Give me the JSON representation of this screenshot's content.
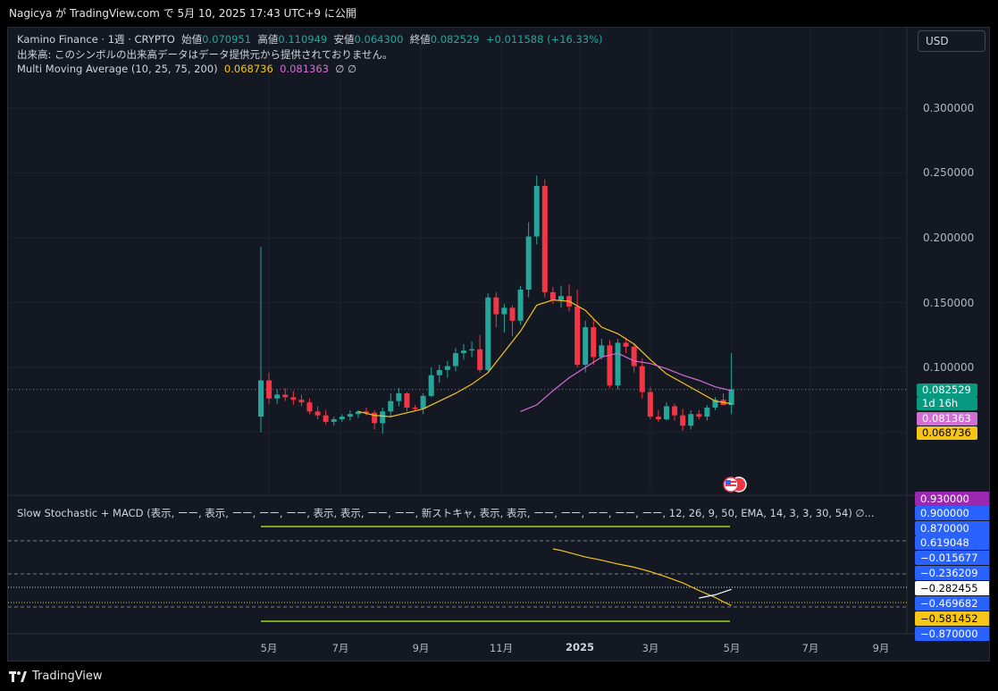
{
  "header": {
    "caption": "Nagicya が TradingView.com で 5月 10, 2025 17:43 UTC+9 に公開"
  },
  "legend": {
    "symbol": "Kamino Finance · 1週 · CRYPTO",
    "open_label": "始値",
    "open": "0.070951",
    "high_label": "高値",
    "high": "0.110949",
    "low_label": "安値",
    "low": "0.064300",
    "close_label": "終値",
    "close": "0.082529",
    "change": "+0.011588 (+16.33%)",
    "volume_note": "出来高: このシンボルの出来高データはデータ提供元から提供されておりません。",
    "ma_name": "Multi Moving Average (10, 25, 75, 200)",
    "ma_val1": "0.068736",
    "ma_val2": "0.081363",
    "ma_null": "∅ ∅"
  },
  "currency_button": "USD",
  "price_axis": [
    "0.300000",
    "0.250000",
    "0.200000",
    "0.150000",
    "0.100000"
  ],
  "price_tags": {
    "last": "0.082529",
    "countdown": "1d 16h",
    "ma_slow": "0.081363",
    "ma_fast": "0.068736"
  },
  "oscillator": {
    "legend": "Slow Stochastic + MACD (表示, ーー, 表示, ーー, ーー, ーー, 表示, 表示, ーー, ーー, 新ストキャ, 表示, 表示, ーー, ーー, ーー, ーー, ーー, 12, 26, 9, 50, EMA, 14, 3, 3, 30, 54)  ∅...",
    "tags": [
      "0.930000",
      "0.900000",
      "0.870000",
      "0.619048",
      "−0.015677",
      "−0.236209",
      "−0.282455",
      "−0.469682",
      "−0.581452",
      "−0.870000"
    ]
  },
  "time_axis": [
    "5月",
    "7月",
    "9月",
    "11月",
    "2025",
    "3月",
    "5月",
    "7月",
    "9月"
  ],
  "footer": {
    "brand": "TradingView"
  },
  "colors": {
    "up": "#26a69a",
    "down": "#f23645",
    "ma_fast": "#f5c518",
    "ma_slow": "#d36ed4",
    "background": "#141823"
  },
  "chart_data": {
    "type": "candlestick",
    "symbol": "Kamino Finance",
    "interval": "1週",
    "ylim": [
      0.04,
      0.32
    ],
    "candles": [
      {
        "o": 0.062,
        "h": 0.193,
        "l": 0.05,
        "c": 0.09
      },
      {
        "o": 0.09,
        "h": 0.096,
        "l": 0.072,
        "c": 0.076
      },
      {
        "o": 0.076,
        "h": 0.083,
        "l": 0.072,
        "c": 0.079
      },
      {
        "o": 0.079,
        "h": 0.084,
        "l": 0.074,
        "c": 0.077
      },
      {
        "o": 0.077,
        "h": 0.082,
        "l": 0.071,
        "c": 0.075
      },
      {
        "o": 0.075,
        "h": 0.079,
        "l": 0.07,
        "c": 0.073
      },
      {
        "o": 0.073,
        "h": 0.076,
        "l": 0.064,
        "c": 0.066
      },
      {
        "o": 0.066,
        "h": 0.07,
        "l": 0.06,
        "c": 0.063
      },
      {
        "o": 0.063,
        "h": 0.067,
        "l": 0.056,
        "c": 0.058
      },
      {
        "o": 0.058,
        "h": 0.062,
        "l": 0.055,
        "c": 0.06
      },
      {
        "o": 0.06,
        "h": 0.064,
        "l": 0.058,
        "c": 0.062
      },
      {
        "o": 0.062,
        "h": 0.067,
        "l": 0.059,
        "c": 0.064
      },
      {
        "o": 0.064,
        "h": 0.067,
        "l": 0.061,
        "c": 0.066
      },
      {
        "o": 0.066,
        "h": 0.069,
        "l": 0.063,
        "c": 0.065
      },
      {
        "o": 0.065,
        "h": 0.067,
        "l": 0.052,
        "c": 0.057
      },
      {
        "o": 0.057,
        "h": 0.069,
        "l": 0.049,
        "c": 0.066
      },
      {
        "o": 0.066,
        "h": 0.08,
        "l": 0.062,
        "c": 0.074
      },
      {
        "o": 0.074,
        "h": 0.084,
        "l": 0.07,
        "c": 0.08
      },
      {
        "o": 0.08,
        "h": 0.081,
        "l": 0.066,
        "c": 0.069
      },
      {
        "o": 0.069,
        "h": 0.071,
        "l": 0.066,
        "c": 0.068
      },
      {
        "o": 0.068,
        "h": 0.08,
        "l": 0.064,
        "c": 0.078
      },
      {
        "o": 0.078,
        "h": 0.1,
        "l": 0.077,
        "c": 0.094
      },
      {
        "o": 0.094,
        "h": 0.102,
        "l": 0.088,
        "c": 0.098
      },
      {
        "o": 0.098,
        "h": 0.105,
        "l": 0.092,
        "c": 0.101
      },
      {
        "o": 0.101,
        "h": 0.115,
        "l": 0.097,
        "c": 0.111
      },
      {
        "o": 0.111,
        "h": 0.118,
        "l": 0.106,
        "c": 0.113
      },
      {
        "o": 0.113,
        "h": 0.12,
        "l": 0.108,
        "c": 0.114
      },
      {
        "o": 0.114,
        "h": 0.125,
        "l": 0.096,
        "c": 0.098
      },
      {
        "o": 0.098,
        "h": 0.157,
        "l": 0.097,
        "c": 0.154
      },
      {
        "o": 0.154,
        "h": 0.158,
        "l": 0.131,
        "c": 0.141
      },
      {
        "o": 0.141,
        "h": 0.149,
        "l": 0.127,
        "c": 0.146
      },
      {
        "o": 0.146,
        "h": 0.148,
        "l": 0.124,
        "c": 0.136
      },
      {
        "o": 0.136,
        "h": 0.163,
        "l": 0.133,
        "c": 0.16
      },
      {
        "o": 0.16,
        "h": 0.212,
        "l": 0.154,
        "c": 0.201
      },
      {
        "o": 0.201,
        "h": 0.248,
        "l": 0.195,
        "c": 0.24
      },
      {
        "o": 0.24,
        "h": 0.245,
        "l": 0.154,
        "c": 0.158
      },
      {
        "o": 0.158,
        "h": 0.162,
        "l": 0.149,
        "c": 0.152
      },
      {
        "o": 0.152,
        "h": 0.163,
        "l": 0.146,
        "c": 0.155
      },
      {
        "o": 0.155,
        "h": 0.164,
        "l": 0.143,
        "c": 0.147
      },
      {
        "o": 0.147,
        "h": 0.16,
        "l": 0.1,
        "c": 0.102
      },
      {
        "o": 0.102,
        "h": 0.136,
        "l": 0.096,
        "c": 0.131
      },
      {
        "o": 0.131,
        "h": 0.137,
        "l": 0.102,
        "c": 0.108
      },
      {
        "o": 0.108,
        "h": 0.122,
        "l": 0.106,
        "c": 0.117
      },
      {
        "o": 0.117,
        "h": 0.121,
        "l": 0.084,
        "c": 0.086
      },
      {
        "o": 0.086,
        "h": 0.122,
        "l": 0.083,
        "c": 0.119
      },
      {
        "o": 0.119,
        "h": 0.123,
        "l": 0.111,
        "c": 0.116
      },
      {
        "o": 0.116,
        "h": 0.118,
        "l": 0.096,
        "c": 0.101
      },
      {
        "o": 0.101,
        "h": 0.107,
        "l": 0.076,
        "c": 0.081
      },
      {
        "o": 0.081,
        "h": 0.085,
        "l": 0.06,
        "c": 0.062
      },
      {
        "o": 0.062,
        "h": 0.067,
        "l": 0.058,
        "c": 0.06
      },
      {
        "o": 0.06,
        "h": 0.073,
        "l": 0.059,
        "c": 0.07
      },
      {
        "o": 0.07,
        "h": 0.072,
        "l": 0.059,
        "c": 0.063
      },
      {
        "o": 0.063,
        "h": 0.068,
        "l": 0.051,
        "c": 0.055
      },
      {
        "o": 0.055,
        "h": 0.067,
        "l": 0.052,
        "c": 0.064
      },
      {
        "o": 0.064,
        "h": 0.067,
        "l": 0.06,
        "c": 0.062
      },
      {
        "o": 0.062,
        "h": 0.071,
        "l": 0.059,
        "c": 0.069
      },
      {
        "o": 0.069,
        "h": 0.077,
        "l": 0.067,
        "c": 0.075
      },
      {
        "o": 0.075,
        "h": 0.08,
        "l": 0.071,
        "c": 0.071
      },
      {
        "o": 0.071,
        "h": 0.111,
        "l": 0.064,
        "c": 0.083
      }
    ],
    "ma_fast": [
      [
        12,
        0.066
      ],
      [
        14,
        0.063
      ],
      [
        16,
        0.062
      ],
      [
        18,
        0.065
      ],
      [
        20,
        0.068
      ],
      [
        22,
        0.074
      ],
      [
        24,
        0.08
      ],
      [
        26,
        0.087
      ],
      [
        28,
        0.096
      ],
      [
        30,
        0.112
      ],
      [
        32,
        0.128
      ],
      [
        34,
        0.148
      ],
      [
        36,
        0.152
      ],
      [
        38,
        0.151
      ],
      [
        40,
        0.144
      ],
      [
        42,
        0.131
      ],
      [
        44,
        0.126
      ],
      [
        46,
        0.118
      ],
      [
        48,
        0.106
      ],
      [
        50,
        0.095
      ],
      [
        52,
        0.088
      ],
      [
        54,
        0.081
      ],
      [
        56,
        0.074
      ],
      [
        58,
        0.072
      ]
    ],
    "ma_slow": [
      [
        32,
        0.066
      ],
      [
        34,
        0.071
      ],
      [
        36,
        0.082
      ],
      [
        38,
        0.092
      ],
      [
        40,
        0.1
      ],
      [
        42,
        0.108
      ],
      [
        44,
        0.111
      ],
      [
        46,
        0.105
      ],
      [
        48,
        0.103
      ],
      [
        50,
        0.099
      ],
      [
        52,
        0.094
      ],
      [
        54,
        0.09
      ],
      [
        56,
        0.085
      ],
      [
        58,
        0.082
      ]
    ],
    "macd_line": [
      [
        36,
        0.47
      ],
      [
        37,
        0.44
      ],
      [
        38,
        0.4
      ],
      [
        40,
        0.32
      ],
      [
        42,
        0.26
      ],
      [
        44,
        0.19
      ],
      [
        46,
        0.13
      ],
      [
        48,
        0.05
      ],
      [
        50,
        -0.05
      ],
      [
        52,
        -0.16
      ],
      [
        54,
        -0.3
      ],
      [
        56,
        -0.43
      ],
      [
        57,
        -0.51
      ],
      [
        58,
        -0.58
      ]
    ],
    "signal_line": [
      [
        54,
        -0.44
      ],
      [
        56,
        -0.38
      ],
      [
        58,
        -0.28
      ]
    ]
  }
}
